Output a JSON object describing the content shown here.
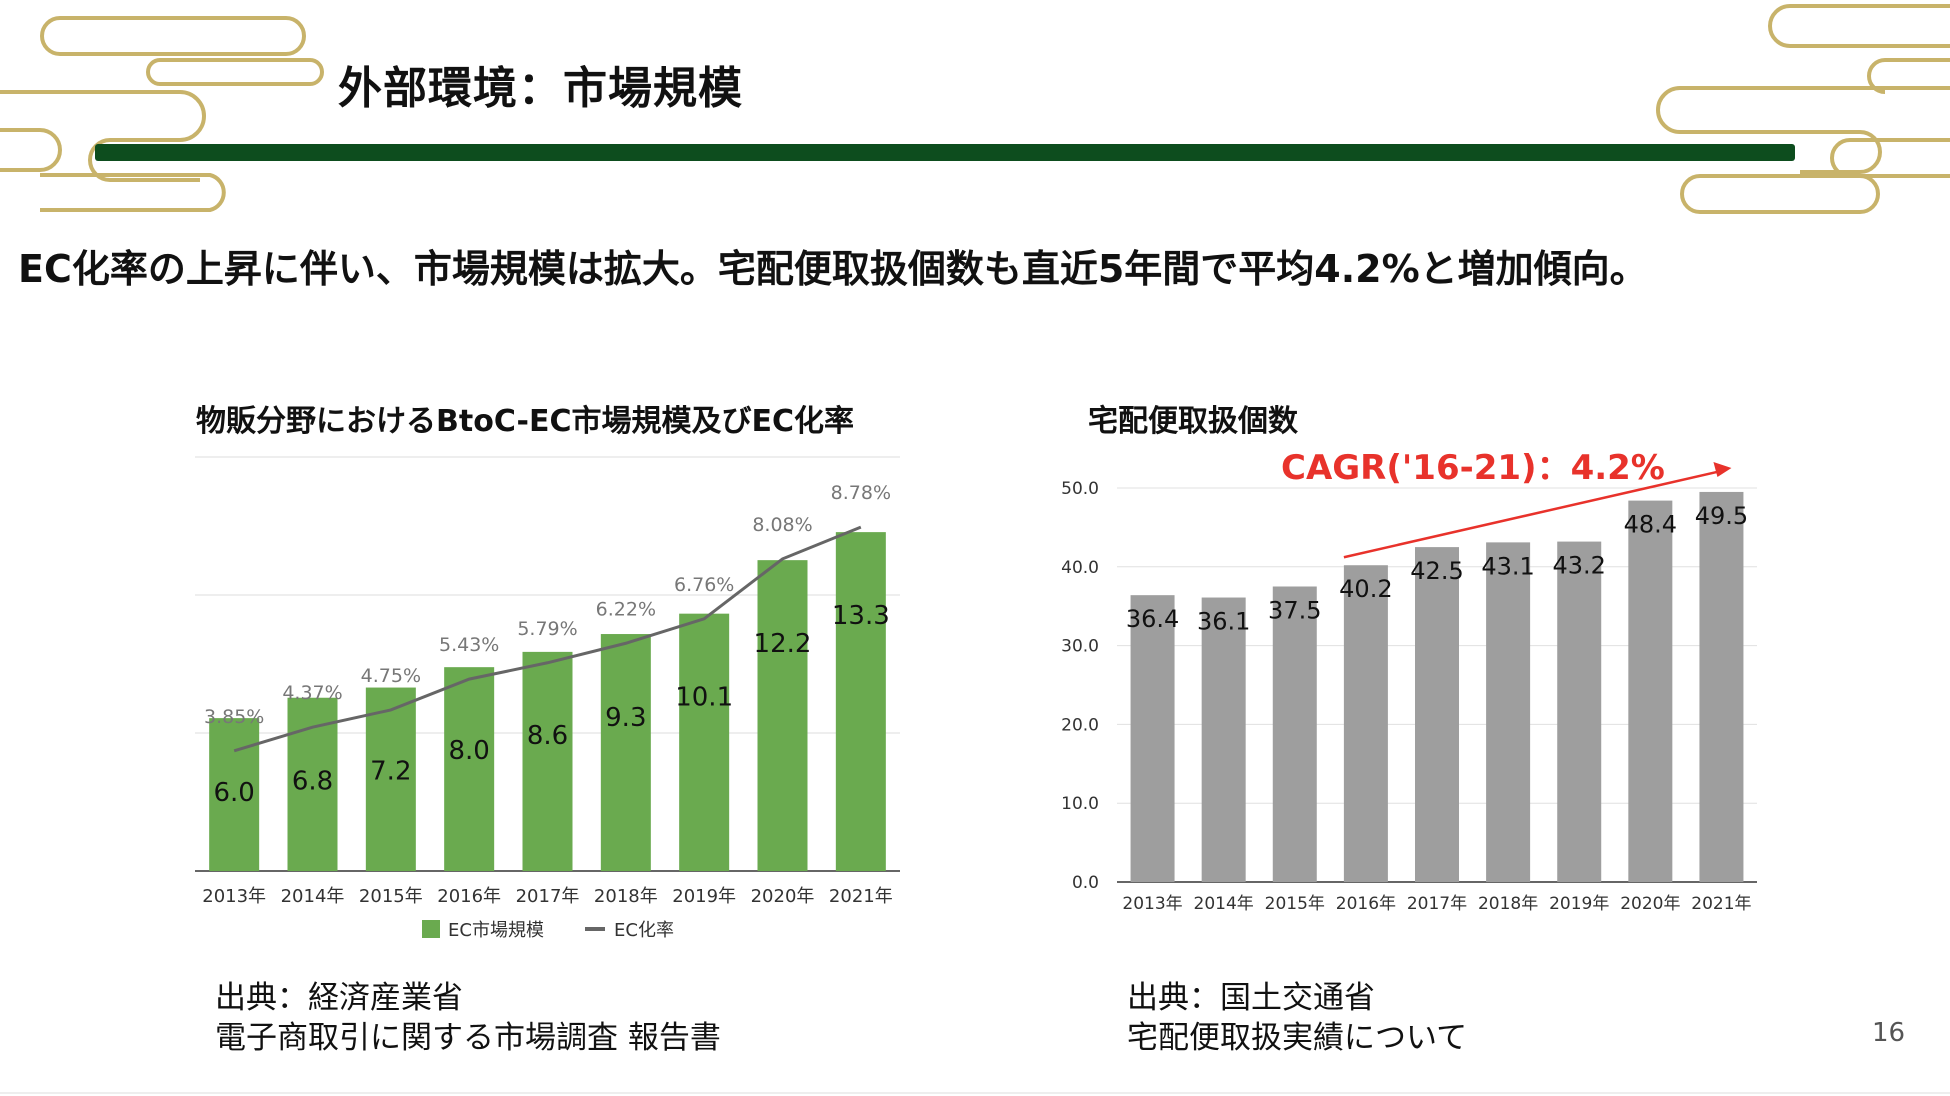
{
  "slide": {
    "title": "外部環境：市場規模",
    "headline": "EC化率の上昇に伴い、市場規模は拡大。宅配便取扱個数も直近5年間で平均4.2%と増加傾向。",
    "page_number": "16"
  },
  "colors": {
    "title_bar": "#0d4d1e",
    "decoration": "#c8b36a",
    "ec_bar": "#6aaa4f",
    "ec_line": "#666666",
    "parcel_bar": "#9e9e9e",
    "cagr": "#e8322b"
  },
  "chart_data": [
    {
      "type": "bar",
      "title": "物販分野におけるBtoC-EC市場規模及びEC化率",
      "categories": [
        "2013年",
        "2014年",
        "2015年",
        "2016年",
        "2017年",
        "2018年",
        "2019年",
        "2020年",
        "2021年"
      ],
      "series": [
        {
          "name": "EC市場規模",
          "type": "bar",
          "values": [
            6.0,
            6.8,
            7.2,
            8.0,
            8.6,
            9.3,
            10.1,
            12.2,
            13.3
          ]
        },
        {
          "name": "EC化率",
          "type": "line",
          "values": [
            3.85,
            4.37,
            4.75,
            5.43,
            5.79,
            6.22,
            6.76,
            8.08,
            8.78
          ],
          "labels": [
            "3.85%",
            "4.37%",
            "4.75%",
            "5.43%",
            "5.79%",
            "6.22%",
            "6.76%",
            "8.08%",
            "8.78%"
          ]
        }
      ],
      "bar_labels": [
        "6.0",
        "6.8",
        "7.2",
        "8.0",
        "8.6",
        "9.3",
        "10.1",
        "12.2",
        "13.3"
      ],
      "legend": {
        "position": "bottom",
        "entries": [
          "EC市場規模",
          "EC化率"
        ]
      },
      "grid": true,
      "source_lines": [
        "出典：経済産業省",
        "電子商取引に関する市場調査 報告書"
      ]
    },
    {
      "type": "bar",
      "title": "宅配便取扱個数",
      "categories": [
        "2013年",
        "2014年",
        "2015年",
        "2016年",
        "2017年",
        "2018年",
        "2019年",
        "2020年",
        "2021年"
      ],
      "values": [
        36.4,
        36.1,
        37.5,
        40.2,
        42.5,
        43.1,
        43.2,
        48.4,
        49.5
      ],
      "bar_labels": [
        "36.4",
        "36.1",
        "37.5",
        "40.2",
        "42.5",
        "43.1",
        "43.2",
        "48.4",
        "49.5"
      ],
      "ylim": [
        0,
        50
      ],
      "y_ticks": [
        "0.0",
        "10.0",
        "20.0",
        "30.0",
        "40.0",
        "50.0"
      ],
      "grid": true,
      "annotation": "CAGR('16-21)：4.2%",
      "source_lines": [
        "出典：国土交通省",
        "宅配便取扱実績について"
      ]
    }
  ]
}
